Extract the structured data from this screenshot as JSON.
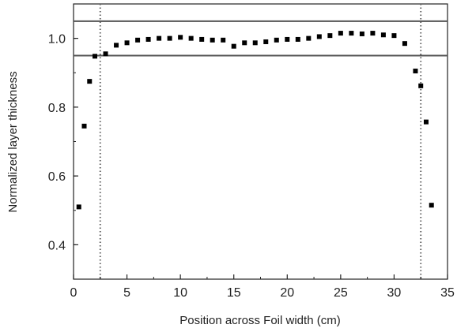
{
  "chart_data": {
    "type": "scatter",
    "xlabel": "Position across Foil width (cm)",
    "ylabel": "Normalized layer thickness",
    "xlim": [
      0,
      35
    ],
    "ylim": [
      0.3,
      1.1
    ],
    "x_ticks": [
      "0",
      "5",
      "10",
      "15",
      "20",
      "25",
      "30",
      "35"
    ],
    "y_ticks": [
      "0.4",
      "0.6",
      "0.8",
      "1.0"
    ],
    "grid": false,
    "legend": "none",
    "reference_lines": {
      "horizontal": [
        1.05,
        0.95
      ],
      "vertical_dotted": [
        2.5,
        32.5
      ]
    },
    "series": [
      {
        "marker": "square",
        "color": "#000000",
        "points": [
          {
            "x": 0.5,
            "y": 0.51
          },
          {
            "x": 1.0,
            "y": 0.745
          },
          {
            "x": 1.5,
            "y": 0.875
          },
          {
            "x": 2.0,
            "y": 0.948
          },
          {
            "x": 3.0,
            "y": 0.955
          },
          {
            "x": 4.0,
            "y": 0.98
          },
          {
            "x": 5.0,
            "y": 0.987
          },
          {
            "x": 6.0,
            "y": 0.995
          },
          {
            "x": 7.0,
            "y": 0.997
          },
          {
            "x": 8.0,
            "y": 1.0
          },
          {
            "x": 9.0,
            "y": 1.0
          },
          {
            "x": 10.0,
            "y": 1.003
          },
          {
            "x": 11.0,
            "y": 1.0
          },
          {
            "x": 12.0,
            "y": 0.997
          },
          {
            "x": 13.0,
            "y": 0.995
          },
          {
            "x": 14.0,
            "y": 0.995
          },
          {
            "x": 15.0,
            "y": 0.977
          },
          {
            "x": 16.0,
            "y": 0.987
          },
          {
            "x": 17.0,
            "y": 0.987
          },
          {
            "x": 18.0,
            "y": 0.99
          },
          {
            "x": 19.0,
            "y": 0.995
          },
          {
            "x": 20.0,
            "y": 0.997
          },
          {
            "x": 21.0,
            "y": 0.997
          },
          {
            "x": 22.0,
            "y": 1.0
          },
          {
            "x": 23.0,
            "y": 1.005
          },
          {
            "x": 24.0,
            "y": 1.008
          },
          {
            "x": 25.0,
            "y": 1.015
          },
          {
            "x": 26.0,
            "y": 1.015
          },
          {
            "x": 27.0,
            "y": 1.013
          },
          {
            "x": 28.0,
            "y": 1.015
          },
          {
            "x": 29.0,
            "y": 1.01
          },
          {
            "x": 30.0,
            "y": 1.008
          },
          {
            "x": 31.0,
            "y": 0.985
          },
          {
            "x": 32.0,
            "y": 0.905
          },
          {
            "x": 32.5,
            "y": 0.862
          },
          {
            "x": 33.0,
            "y": 0.757
          },
          {
            "x": 33.5,
            "y": 0.515
          }
        ]
      }
    ]
  }
}
